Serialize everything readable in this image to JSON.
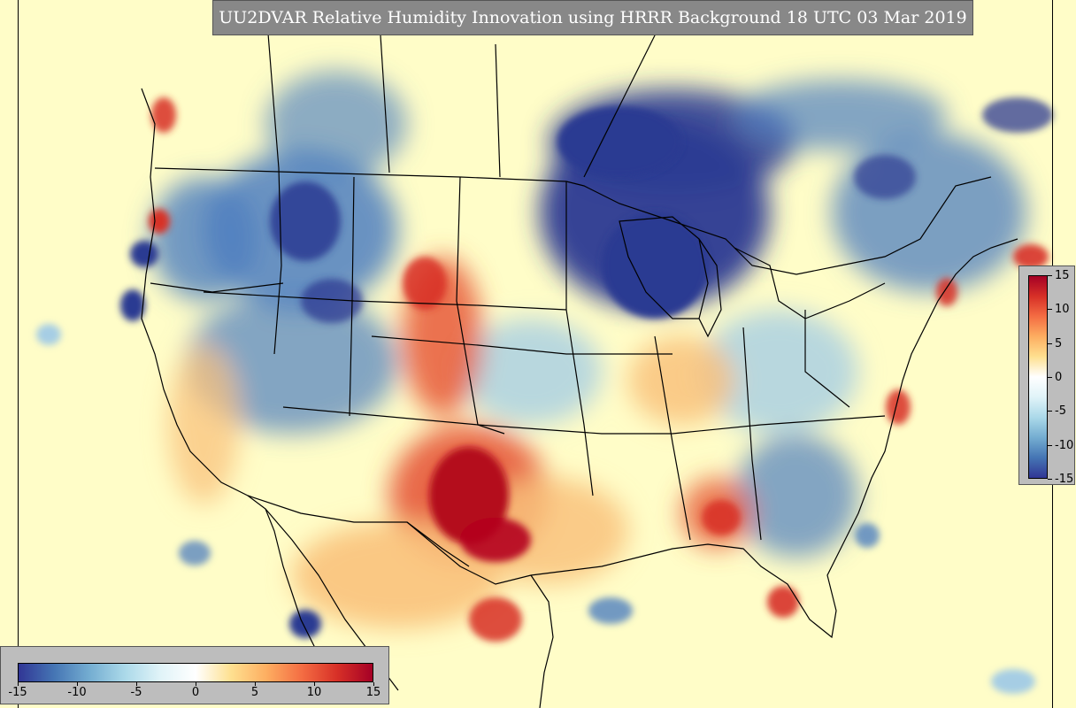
{
  "title": "UU2DVAR Relative Humidity Innovation using HRRR Background 18 UTC 03 Mar 2019",
  "colorbar": {
    "min": -15,
    "max": 15,
    "stops": [
      "#313695",
      "#4575b4",
      "#74add1",
      "#abd9e9",
      "#e0f3f8",
      "#ffffff",
      "#fee090",
      "#fdae61",
      "#f46d43",
      "#d73027",
      "#a50026"
    ],
    "right_ticks": [
      "15",
      "10",
      "5",
      "0",
      "-5",
      "-10",
      "-15"
    ],
    "bottom_ticks": [
      "-15",
      "-10",
      "-5",
      "0",
      "5",
      "10",
      "15"
    ]
  },
  "map": {
    "background_color": "#fffdc8",
    "field_colors": {
      "strong_dry": "#2c3a92",
      "dry": "#4f7fbf",
      "slight_dry": "#a6cde4",
      "slight_moist": "#f9c27c",
      "moist": "#e75a3a",
      "strong_moist": "#b4071e"
    }
  }
}
